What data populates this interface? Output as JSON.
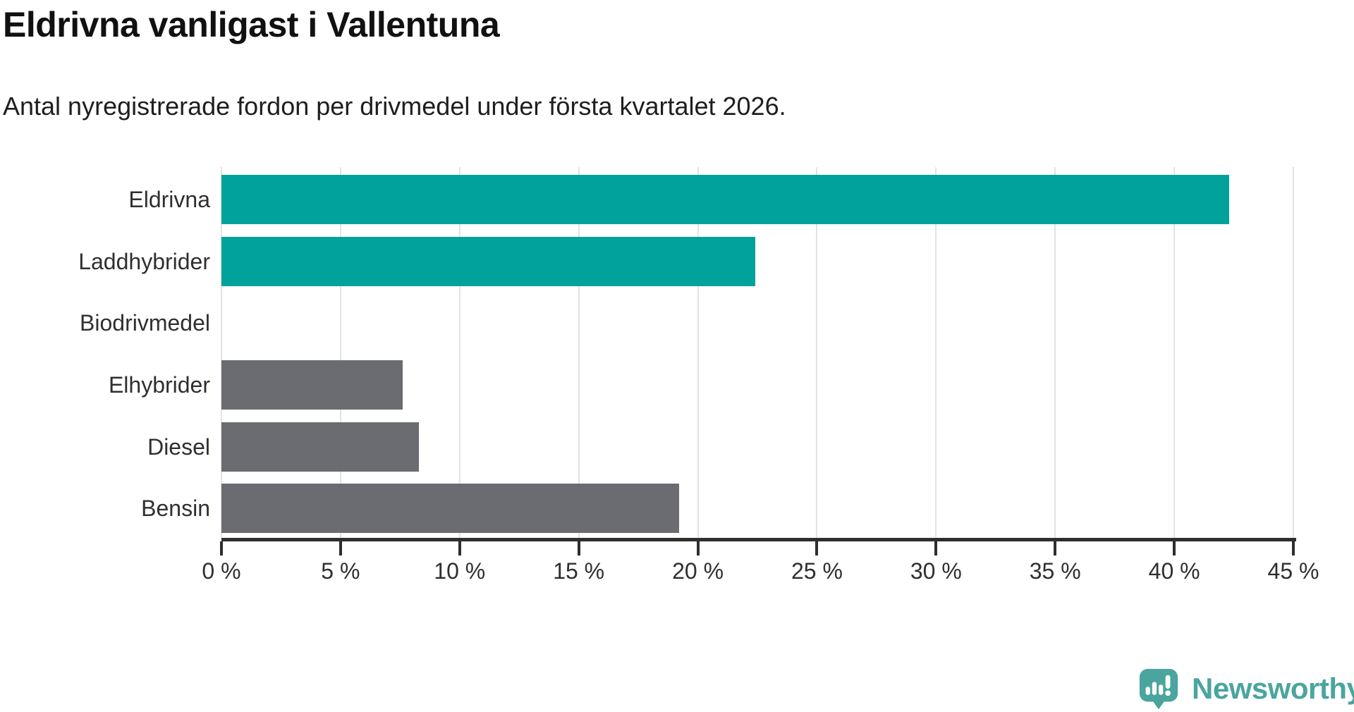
{
  "chart_data": {
    "type": "bar",
    "orientation": "horizontal",
    "title": "Eldrivna vanligast i Vallentuna",
    "subtitle": "Antal nyregistrerade fordon per drivmedel under första kvartalet 2026.",
    "categories": [
      "Eldrivna",
      "Laddhybrider",
      "Biodrivmedel",
      "Elhybrider",
      "Diesel",
      "Bensin"
    ],
    "values": [
      42.3,
      22.4,
      0,
      7.6,
      8.3,
      19.2
    ],
    "unit": "%",
    "bar_colors": [
      "#00a29b",
      "#00a29b",
      "#00a29b",
      "#6b6b72",
      "#6b6b72",
      "#6b6b72"
    ],
    "xlim": [
      0,
      45
    ],
    "xticks": [
      0,
      5,
      10,
      15,
      20,
      25,
      30,
      35,
      40,
      45
    ],
    "xtick_labels": [
      "0 %",
      "5 %",
      "10 %",
      "15 %",
      "20 %",
      "25 %",
      "30 %",
      "35 %",
      "40 %",
      "45 %"
    ],
    "grid": true,
    "legend": false
  },
  "colors": {
    "teal": "#00a29b",
    "gray": "#6b6b72",
    "axis": "#2e2e2e",
    "gridline": "#e3e3e3",
    "title_text": "#111111",
    "label_text": "#2f2f2f",
    "brand_teal": "#4aa59e"
  },
  "branding": {
    "wordmark": "Newsworthy",
    "icon": "newsworthy-speech-bubble-barchart-icon"
  }
}
